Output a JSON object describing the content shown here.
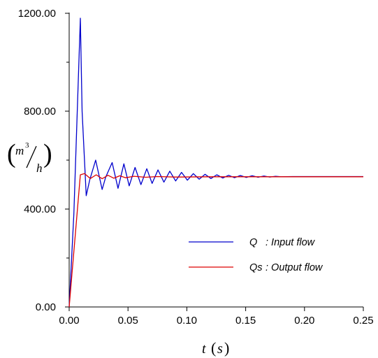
{
  "chart_data": {
    "type": "line",
    "title": "",
    "xlabel": {
      "var": "t",
      "unit": "s"
    },
    "ylabel": {
      "base": "m",
      "exp": "3",
      "den": "h"
    },
    "xlim": [
      0,
      0.25
    ],
    "ylim": [
      0,
      1200
    ],
    "x_ticks": [
      "0.00",
      "0.05",
      "0.10",
      "0.15",
      "0.20",
      "0.25"
    ],
    "y_ticks": [
      "0.00",
      "400.00",
      "800.00",
      "1200.00"
    ],
    "grid": false,
    "legend_position": "center-right",
    "series": [
      {
        "name": "Q",
        "label": ": Input flow",
        "color": "#0000cc",
        "x": [
          0,
          0.004,
          0.0095,
          0.011,
          0.0145,
          0.0175,
          0.0225,
          0.028,
          0.031,
          0.0365,
          0.0415,
          0.0465,
          0.051,
          0.056,
          0.061,
          0.066,
          0.0705,
          0.0755,
          0.0805,
          0.0855,
          0.0905,
          0.0955,
          0.1005,
          0.1055,
          0.1105,
          0.1155,
          0.1205,
          0.1255,
          0.1305,
          0.1355,
          0.1405,
          0.1455,
          0.1505,
          0.1555,
          0.1605,
          0.1655,
          0.1705,
          0.1755,
          0.18,
          0.19,
          0.2,
          0.21,
          0.22,
          0.23,
          0.24,
          0.25
        ],
        "values": [
          0,
          380,
          1180,
          800,
          455,
          520,
          600,
          480,
          530,
          590,
          485,
          585,
          495,
          570,
          500,
          565,
          505,
          560,
          510,
          555,
          515,
          550,
          518,
          545,
          522,
          542,
          525,
          540,
          527,
          538,
          528,
          537,
          529,
          536,
          530,
          535,
          531,
          534,
          532,
          533,
          533,
          533,
          533,
          533,
          533,
          533
        ]
      },
      {
        "name": "Qs",
        "label": ": Output flow",
        "color": "#dd0000",
        "x": [
          0,
          0.0095,
          0.013,
          0.018,
          0.023,
          0.028,
          0.033,
          0.038,
          0.043,
          0.048,
          0.055,
          0.065,
          0.075,
          0.09,
          0.12,
          0.16,
          0.2,
          0.25
        ],
        "values": [
          0,
          540,
          545,
          525,
          540,
          524,
          538,
          526,
          536,
          528,
          534,
          530,
          533,
          531,
          532,
          532,
          532,
          532
        ]
      }
    ]
  }
}
